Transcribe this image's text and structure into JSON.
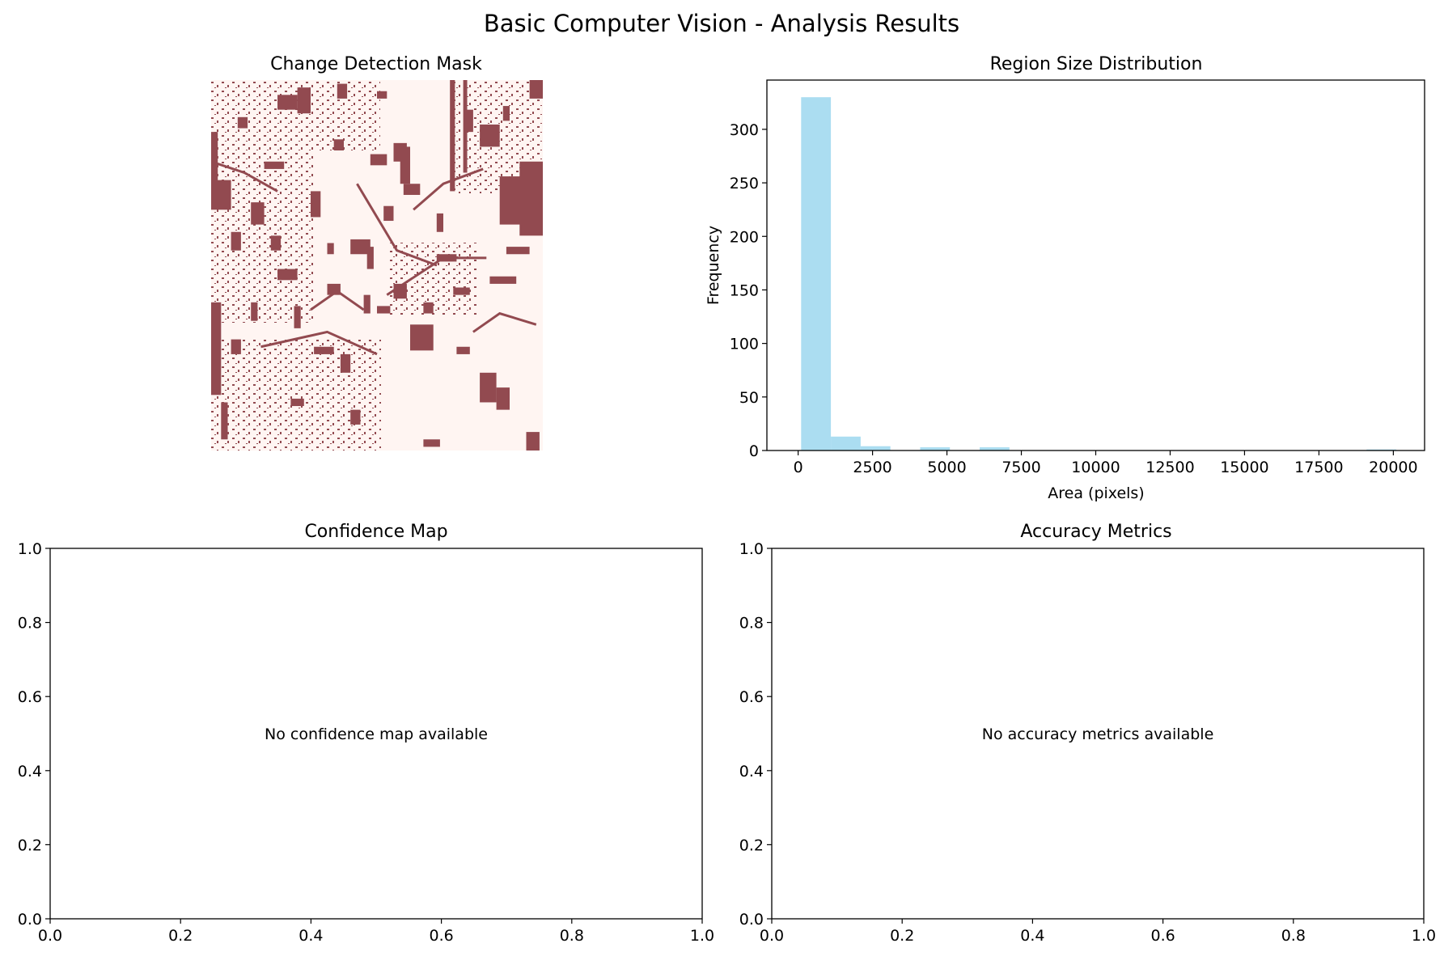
{
  "figure": {
    "title": "Basic Computer Vision - Analysis Results"
  },
  "colors": {
    "mask_changed": "#924a50",
    "mask_background": "#fff5f2",
    "histogram_bar": "#87ceeb",
    "axis": "#000000"
  },
  "chart_data": [
    {
      "type": "heatmap",
      "title": "Change Detection Mask",
      "axes_visible": false,
      "colormap": [
        "#fff5f2",
        "#924a50"
      ],
      "values": "binary change mask (raster image)"
    },
    {
      "type": "bar",
      "title": "Region Size Distribution",
      "xlabel": "Area (pixels)",
      "ylabel": "Frequency",
      "xlim": [
        -1050,
        21050
      ],
      "ylim": [
        0,
        346
      ],
      "xticks": [
        0,
        2500,
        5000,
        7500,
        10000,
        12500,
        15000,
        17500,
        20000
      ],
      "xtick_labels": [
        "0",
        "2500",
        "5000",
        "7500",
        "10000",
        "12500",
        "15000",
        "17500",
        "20000"
      ],
      "yticks": [
        0,
        50,
        100,
        150,
        200,
        250,
        300
      ],
      "ytick_labels": [
        "0",
        "50",
        "100",
        "150",
        "200",
        "250",
        "300"
      ],
      "bin_edges": [
        100,
        1100,
        2100,
        3100,
        4100,
        5100,
        6100,
        7100,
        8100,
        9100,
        10100,
        11100,
        12100,
        13100,
        14100,
        15100,
        16100,
        17100,
        18100,
        19100,
        20100
      ],
      "values": [
        330,
        13,
        4,
        0,
        3,
        0,
        3,
        0,
        0,
        0,
        0,
        0,
        0,
        0,
        0,
        0,
        0,
        0,
        0,
        1
      ],
      "bar_alpha": 0.7
    },
    {
      "type": "line",
      "title": "Confidence Map",
      "xlim": [
        0,
        1
      ],
      "ylim": [
        0,
        1
      ],
      "xticks": [
        0,
        0.2,
        0.4,
        0.6,
        0.8,
        1.0
      ],
      "xtick_labels": [
        "0.0",
        "0.2",
        "0.4",
        "0.6",
        "0.8",
        "1.0"
      ],
      "yticks": [
        0,
        0.2,
        0.4,
        0.6,
        0.8,
        1.0
      ],
      "ytick_labels": [
        "0.0",
        "0.2",
        "0.4",
        "0.6",
        "0.8",
        "1.0"
      ],
      "annotation": "No confidence map available",
      "series": []
    },
    {
      "type": "line",
      "title": "Accuracy Metrics",
      "xlim": [
        0,
        1
      ],
      "ylim": [
        0,
        1
      ],
      "xticks": [
        0,
        0.2,
        0.4,
        0.6,
        0.8,
        1.0
      ],
      "xtick_labels": [
        "0.0",
        "0.2",
        "0.4",
        "0.6",
        "0.8",
        "1.0"
      ],
      "yticks": [
        0,
        0.2,
        0.4,
        0.6,
        0.8,
        1.0
      ],
      "ytick_labels": [
        "0.0",
        "0.2",
        "0.4",
        "0.6",
        "0.8",
        "1.0"
      ],
      "annotation": "No accuracy metrics available",
      "series": []
    }
  ]
}
